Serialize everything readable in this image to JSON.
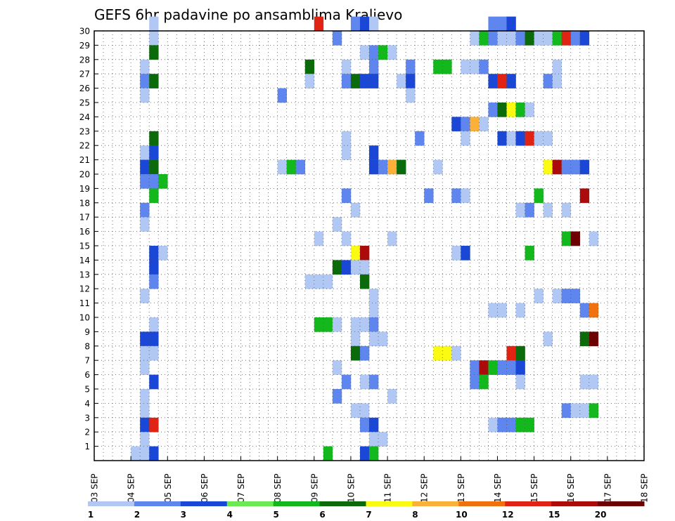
{
  "chart_data": {
    "type": "heatmap",
    "title": "GEFS 6hr padavine po ansamblima Kraljevo",
    "xlabel": "",
    "ylabel": "",
    "x_tick_labels": [
      "03 SEP",
      "04 SEP",
      "05 SEP",
      "06 SEP",
      "07 SEP",
      "08 SEP",
      "09 SEP",
      "10 SEP",
      "11 SEP",
      "12 SEP",
      "13 SEP",
      "14 SEP",
      "15 SEP",
      "16 SEP",
      "17 SEP",
      "18 SEP"
    ],
    "y_tick_labels": [
      "1",
      "2",
      "3",
      "4",
      "5",
      "6",
      "7",
      "8",
      "9",
      "10",
      "11",
      "12",
      "13",
      "14",
      "15",
      "16",
      "17",
      "18",
      "19",
      "20",
      "21",
      "22",
      "23",
      "24",
      "25",
      "26",
      "27",
      "28",
      "29",
      "30"
    ],
    "y_range": [
      0,
      30
    ],
    "x_range_days": [
      0,
      15
    ],
    "steps_per_day": 4,
    "grid": "dotted",
    "legend": {
      "position": "bottom",
      "levels": [
        "1",
        "2",
        "3",
        "4",
        "5",
        "6",
        "7",
        "8",
        "10",
        "12",
        "15",
        "20"
      ],
      "colors": [
        "#b2c8f4",
        "#5f86ee",
        "#1b47d6",
        "#6cea52",
        "#12b81c",
        "#0b6b0b",
        "#fbfb12",
        "#fbb03a",
        "#f0720e",
        "#e02312",
        "#ac0b0b",
        "#6d0000"
      ]
    },
    "cells": [
      [
        6,
        30,
        0
      ],
      [
        6,
        29,
        0
      ],
      [
        6,
        28,
        5
      ],
      [
        5,
        27,
        0
      ],
      [
        5,
        26,
        1
      ],
      [
        6,
        26,
        5
      ],
      [
        5,
        25,
        0
      ],
      [
        6,
        22,
        5
      ],
      [
        5,
        21,
        0
      ],
      [
        6,
        21,
        2
      ],
      [
        5,
        20,
        2
      ],
      [
        6,
        20,
        5
      ],
      [
        5,
        19,
        1
      ],
      [
        6,
        19,
        1
      ],
      [
        7,
        19,
        4
      ],
      [
        6,
        18,
        4
      ],
      [
        5,
        17,
        1
      ],
      [
        5,
        16,
        0
      ],
      [
        6,
        14,
        2
      ],
      [
        7,
        14,
        0
      ],
      [
        6,
        13,
        2
      ],
      [
        6,
        12,
        1
      ],
      [
        5,
        11,
        0
      ],
      [
        6,
        9,
        0
      ],
      [
        5,
        8,
        2
      ],
      [
        6,
        8,
        2
      ],
      [
        5,
        7,
        0
      ],
      [
        6,
        7,
        0
      ],
      [
        5,
        6,
        0
      ],
      [
        6,
        5,
        2
      ],
      [
        5,
        4,
        0
      ],
      [
        5,
        3,
        0
      ],
      [
        5,
        2,
        2
      ],
      [
        6,
        2,
        9
      ],
      [
        5,
        1,
        0
      ],
      [
        4,
        0,
        0
      ],
      [
        5,
        0,
        0
      ],
      [
        6,
        0,
        2
      ],
      [
        24,
        30,
        9
      ],
      [
        28,
        30,
        1
      ],
      [
        29,
        30,
        2
      ],
      [
        30,
        30,
        0
      ],
      [
        26,
        29,
        1
      ],
      [
        29,
        28,
        0
      ],
      [
        30,
        28,
        1
      ],
      [
        31,
        28,
        4
      ],
      [
        32,
        28,
        0
      ],
      [
        23,
        27,
        5
      ],
      [
        27,
        27,
        0
      ],
      [
        30,
        27,
        1
      ],
      [
        34,
        27,
        1
      ],
      [
        37,
        27,
        4
      ],
      [
        38,
        27,
        4
      ],
      [
        40,
        27,
        0
      ],
      [
        41,
        27,
        0
      ],
      [
        42,
        27,
        1
      ],
      [
        23,
        26,
        0
      ],
      [
        27,
        26,
        1
      ],
      [
        28,
        26,
        5
      ],
      [
        29,
        26,
        2
      ],
      [
        30,
        26,
        2
      ],
      [
        33,
        26,
        0
      ],
      [
        34,
        26,
        2
      ],
      [
        20,
        25,
        1
      ],
      [
        34,
        25,
        0
      ],
      [
        27,
        22,
        0
      ],
      [
        35,
        22,
        1
      ],
      [
        27,
        21,
        0
      ],
      [
        30,
        21,
        2
      ],
      [
        30,
        20,
        2
      ],
      [
        31,
        20,
        1
      ],
      [
        32,
        20,
        7
      ],
      [
        33,
        20,
        5
      ],
      [
        37,
        20,
        0
      ],
      [
        20,
        20,
        0
      ],
      [
        21,
        20,
        4
      ],
      [
        22,
        20,
        1
      ],
      [
        36,
        18,
        1
      ],
      [
        39,
        18,
        1
      ],
      [
        40,
        18,
        0
      ],
      [
        27,
        18,
        1
      ],
      [
        28,
        17,
        0
      ],
      [
        26,
        16,
        0
      ],
      [
        24,
        15,
        0
      ],
      [
        27,
        15,
        0
      ],
      [
        32,
        15,
        0
      ],
      [
        28,
        14,
        6
      ],
      [
        29,
        14,
        10
      ],
      [
        39,
        14,
        0
      ],
      [
        40,
        14,
        2
      ],
      [
        26,
        13,
        5
      ],
      [
        27,
        13,
        2
      ],
      [
        28,
        13,
        0
      ],
      [
        29,
        13,
        0
      ],
      [
        23,
        12,
        0
      ],
      [
        24,
        12,
        0
      ],
      [
        25,
        12,
        0
      ],
      [
        29,
        12,
        5
      ],
      [
        30,
        11,
        0
      ],
      [
        30,
        10,
        0
      ],
      [
        24,
        9,
        4
      ],
      [
        25,
        9,
        4
      ],
      [
        26,
        9,
        0
      ],
      [
        28,
        9,
        0
      ],
      [
        29,
        9,
        0
      ],
      [
        30,
        9,
        1
      ],
      [
        28,
        8,
        0
      ],
      [
        30,
        8,
        0
      ],
      [
        31,
        8,
        0
      ],
      [
        28,
        7,
        5
      ],
      [
        29,
        7,
        1
      ],
      [
        26,
        6,
        0
      ],
      [
        27,
        5,
        1
      ],
      [
        29,
        5,
        0
      ],
      [
        30,
        5,
        1
      ],
      [
        26,
        4,
        1
      ],
      [
        32,
        4,
        0
      ],
      [
        28,
        3,
        0
      ],
      [
        29,
        3,
        0
      ],
      [
        29,
        2,
        1
      ],
      [
        30,
        2,
        2
      ],
      [
        30,
        1,
        0
      ],
      [
        31,
        1,
        0
      ],
      [
        25,
        0,
        4
      ],
      [
        29,
        0,
        2
      ],
      [
        30,
        0,
        4
      ],
      [
        43,
        30,
        1
      ],
      [
        44,
        30,
        1
      ],
      [
        45,
        30,
        2
      ],
      [
        41,
        29,
        0
      ],
      [
        42,
        29,
        4
      ],
      [
        43,
        29,
        1
      ],
      [
        44,
        29,
        0
      ],
      [
        45,
        29,
        0
      ],
      [
        46,
        29,
        1
      ],
      [
        47,
        29,
        5
      ],
      [
        48,
        29,
        0
      ],
      [
        49,
        29,
        0
      ],
      [
        50,
        29,
        4
      ],
      [
        51,
        29,
        9
      ],
      [
        52,
        29,
        1
      ],
      [
        53,
        29,
        2
      ],
      [
        43,
        26,
        2
      ],
      [
        44,
        26,
        9
      ],
      [
        45,
        26,
        2
      ],
      [
        49,
        26,
        1
      ],
      [
        50,
        26,
        0
      ],
      [
        50,
        27,
        0
      ],
      [
        39,
        23,
        2
      ],
      [
        40,
        23,
        1
      ],
      [
        41,
        23,
        7
      ],
      [
        42,
        23,
        0
      ],
      [
        43,
        24,
        1
      ],
      [
        44,
        24,
        5
      ],
      [
        45,
        24,
        6
      ],
      [
        46,
        24,
        4
      ],
      [
        47,
        24,
        0
      ],
      [
        40,
        22,
        0
      ],
      [
        44,
        22,
        2
      ],
      [
        45,
        22,
        0
      ],
      [
        46,
        22,
        2
      ],
      [
        47,
        22,
        9
      ],
      [
        48,
        22,
        0
      ],
      [
        49,
        22,
        0
      ],
      [
        49,
        20,
        6
      ],
      [
        50,
        20,
        10
      ],
      [
        51,
        20,
        1
      ],
      [
        52,
        20,
        1
      ],
      [
        53,
        20,
        2
      ],
      [
        48,
        18,
        4
      ],
      [
        53,
        18,
        10
      ],
      [
        46,
        17,
        0
      ],
      [
        47,
        17,
        1
      ],
      [
        49,
        17,
        0
      ],
      [
        51,
        17,
        0
      ],
      [
        51,
        15,
        4
      ],
      [
        52,
        15,
        11
      ],
      [
        54,
        15,
        0
      ],
      [
        47,
        14,
        4
      ],
      [
        48,
        11,
        0
      ],
      [
        50,
        11,
        0
      ],
      [
        51,
        11,
        1
      ],
      [
        52,
        11,
        1
      ],
      [
        43,
        10,
        0
      ],
      [
        44,
        10,
        0
      ],
      [
        46,
        10,
        0
      ],
      [
        53,
        10,
        1
      ],
      [
        54,
        10,
        8
      ],
      [
        49,
        8,
        0
      ],
      [
        53,
        8,
        5
      ],
      [
        54,
        8,
        11
      ],
      [
        37,
        7,
        6
      ],
      [
        38,
        7,
        6
      ],
      [
        39,
        7,
        0
      ],
      [
        45,
        7,
        9
      ],
      [
        46,
        7,
        5
      ],
      [
        41,
        6,
        1
      ],
      [
        42,
        6,
        10
      ],
      [
        43,
        6,
        4
      ],
      [
        44,
        6,
        1
      ],
      [
        45,
        6,
        1
      ],
      [
        46,
        6,
        2
      ],
      [
        41,
        5,
        1
      ],
      [
        42,
        5,
        4
      ],
      [
        46,
        5,
        0
      ],
      [
        53,
        5,
        0
      ],
      [
        54,
        5,
        0
      ],
      [
        51,
        3,
        1
      ],
      [
        52,
        3,
        0
      ],
      [
        53,
        3,
        0
      ],
      [
        54,
        3,
        4
      ],
      [
        43,
        2,
        0
      ],
      [
        44,
        2,
        1
      ],
      [
        45,
        2,
        1
      ],
      [
        46,
        2,
        4
      ],
      [
        47,
        2,
        4
      ]
    ]
  }
}
